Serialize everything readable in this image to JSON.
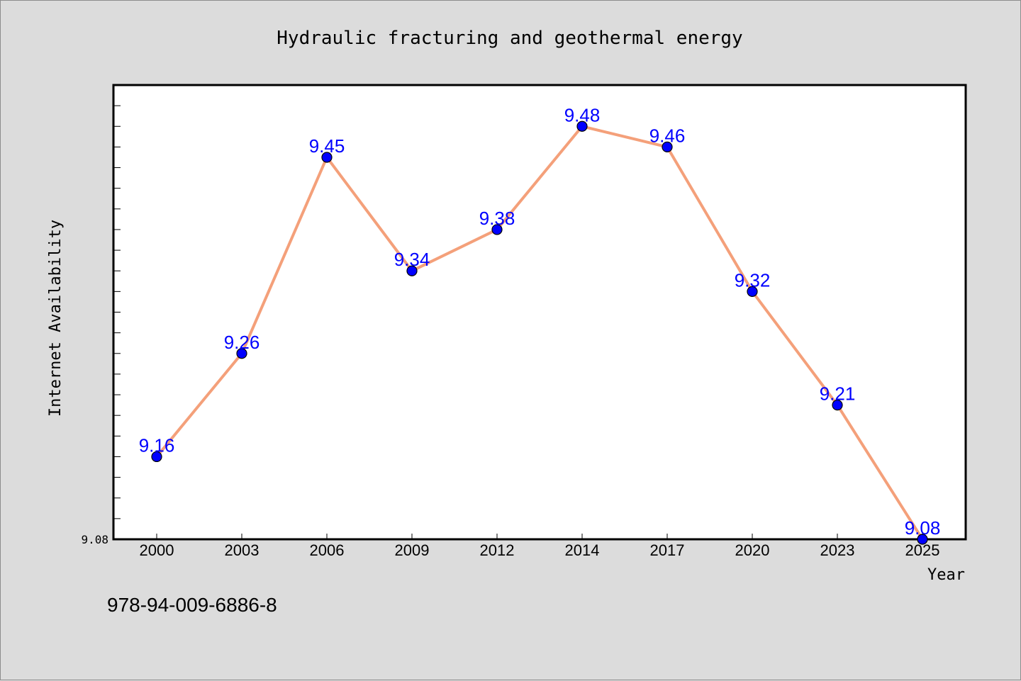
{
  "chart_data": {
    "type": "line",
    "title": "Hydraulic fracturing and geothermal energy",
    "xlabel": "Year",
    "ylabel": "Internet Availability",
    "categories": [
      "2000",
      "2003",
      "2006",
      "2009",
      "2012",
      "2014",
      "2017",
      "2020",
      "2023",
      "2025"
    ],
    "series": [
      {
        "values": [
          9.16,
          9.26,
          9.45,
          9.34,
          9.38,
          9.48,
          9.46,
          9.32,
          9.21,
          9.08
        ],
        "labels": [
          "9.16",
          "9.26",
          "9.45",
          "9.34",
          "9.38",
          "9.48",
          "9.46",
          "9.32",
          "9.21",
          "9.08"
        ],
        "line_color": "#f4a07a",
        "marker_color": "#0000ff"
      }
    ],
    "ylim": [
      9.08,
      9.52
    ],
    "y_tick_labels": [
      "9.08"
    ],
    "grid": false,
    "annotation": "978-94-009-6886-8"
  },
  "colors": {
    "background": "#dcdcdc",
    "plot_background": "#ffffff",
    "line": "#f4a07a",
    "marker": "#0000ff",
    "data_label": "#0000ff"
  }
}
